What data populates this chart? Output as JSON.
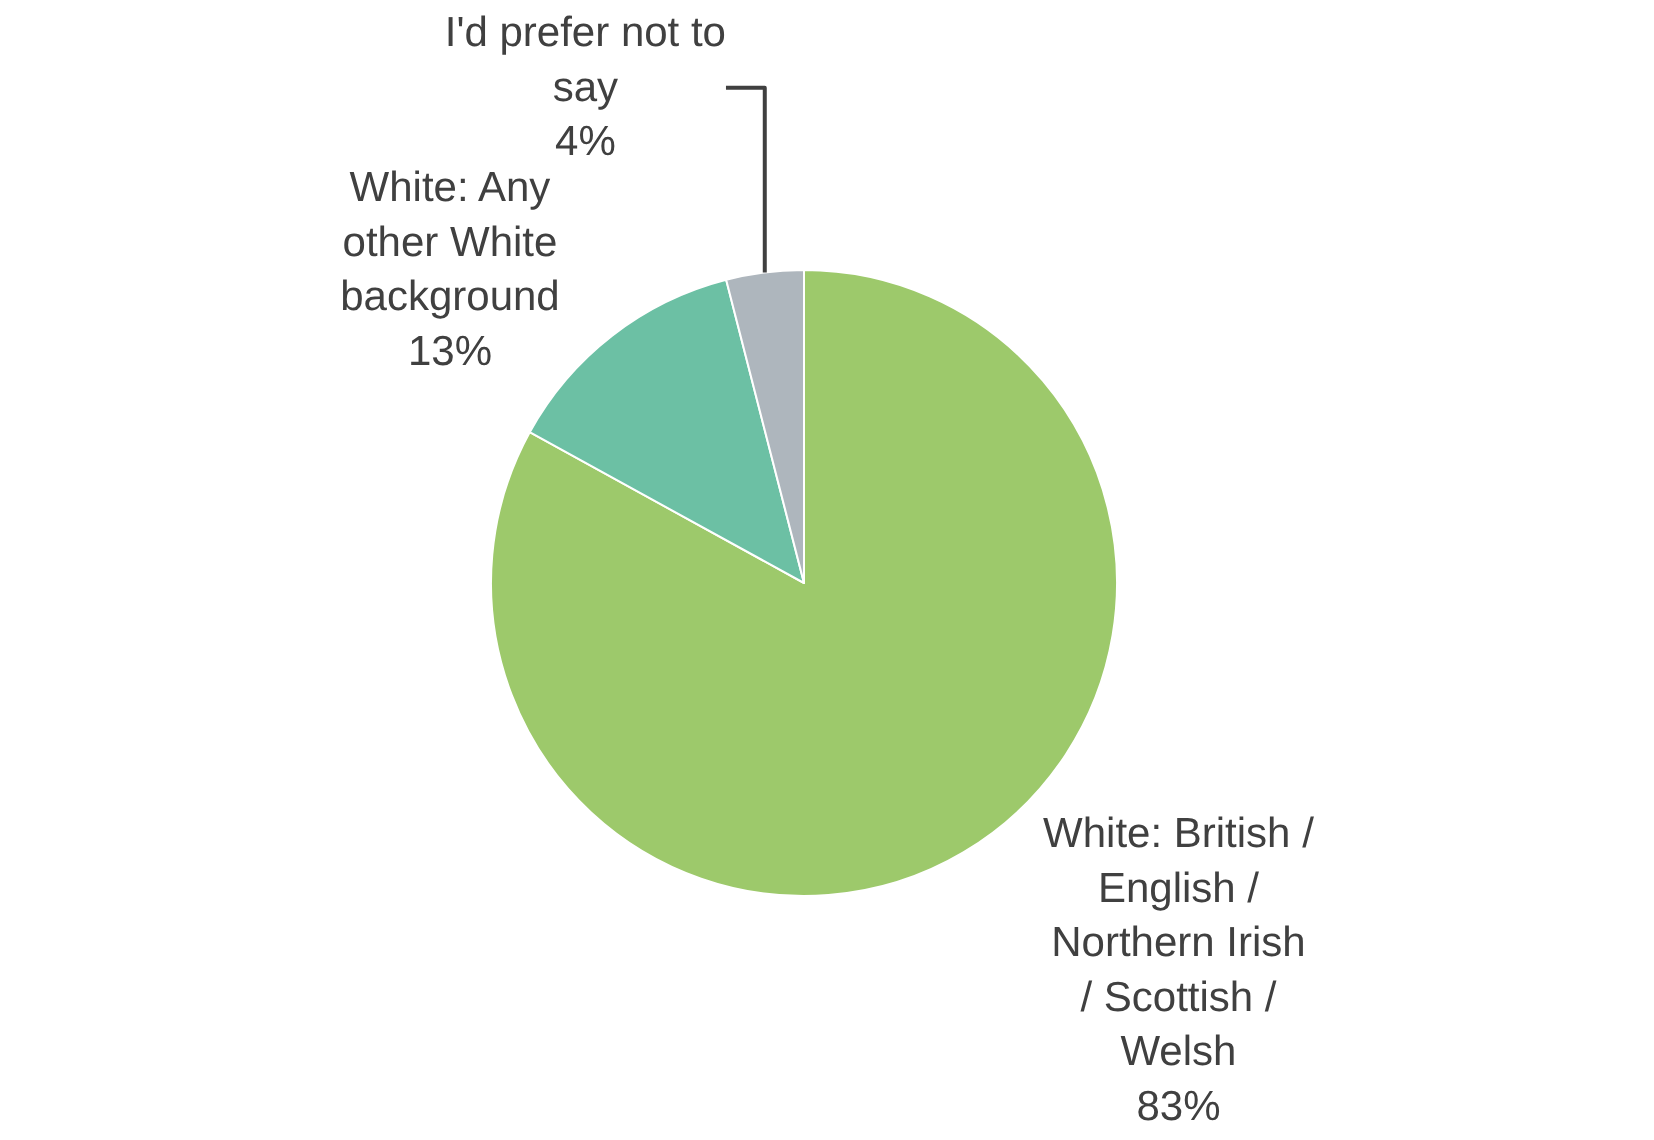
{
  "chart_data": {
    "type": "pie",
    "categories": [
      "White: British /\nEnglish /\nNorthern Irish\n/ Scottish /\nWelsh",
      "White: Any\nother White\nbackground",
      "I'd prefer not to\nsay"
    ],
    "values": [
      83,
      13,
      4
    ],
    "value_labels": [
      "83%",
      "13%",
      "4%"
    ],
    "colors": [
      "#9dc96b",
      "#6cc0a4",
      "#aeb6bd"
    ],
    "legend": false
  }
}
